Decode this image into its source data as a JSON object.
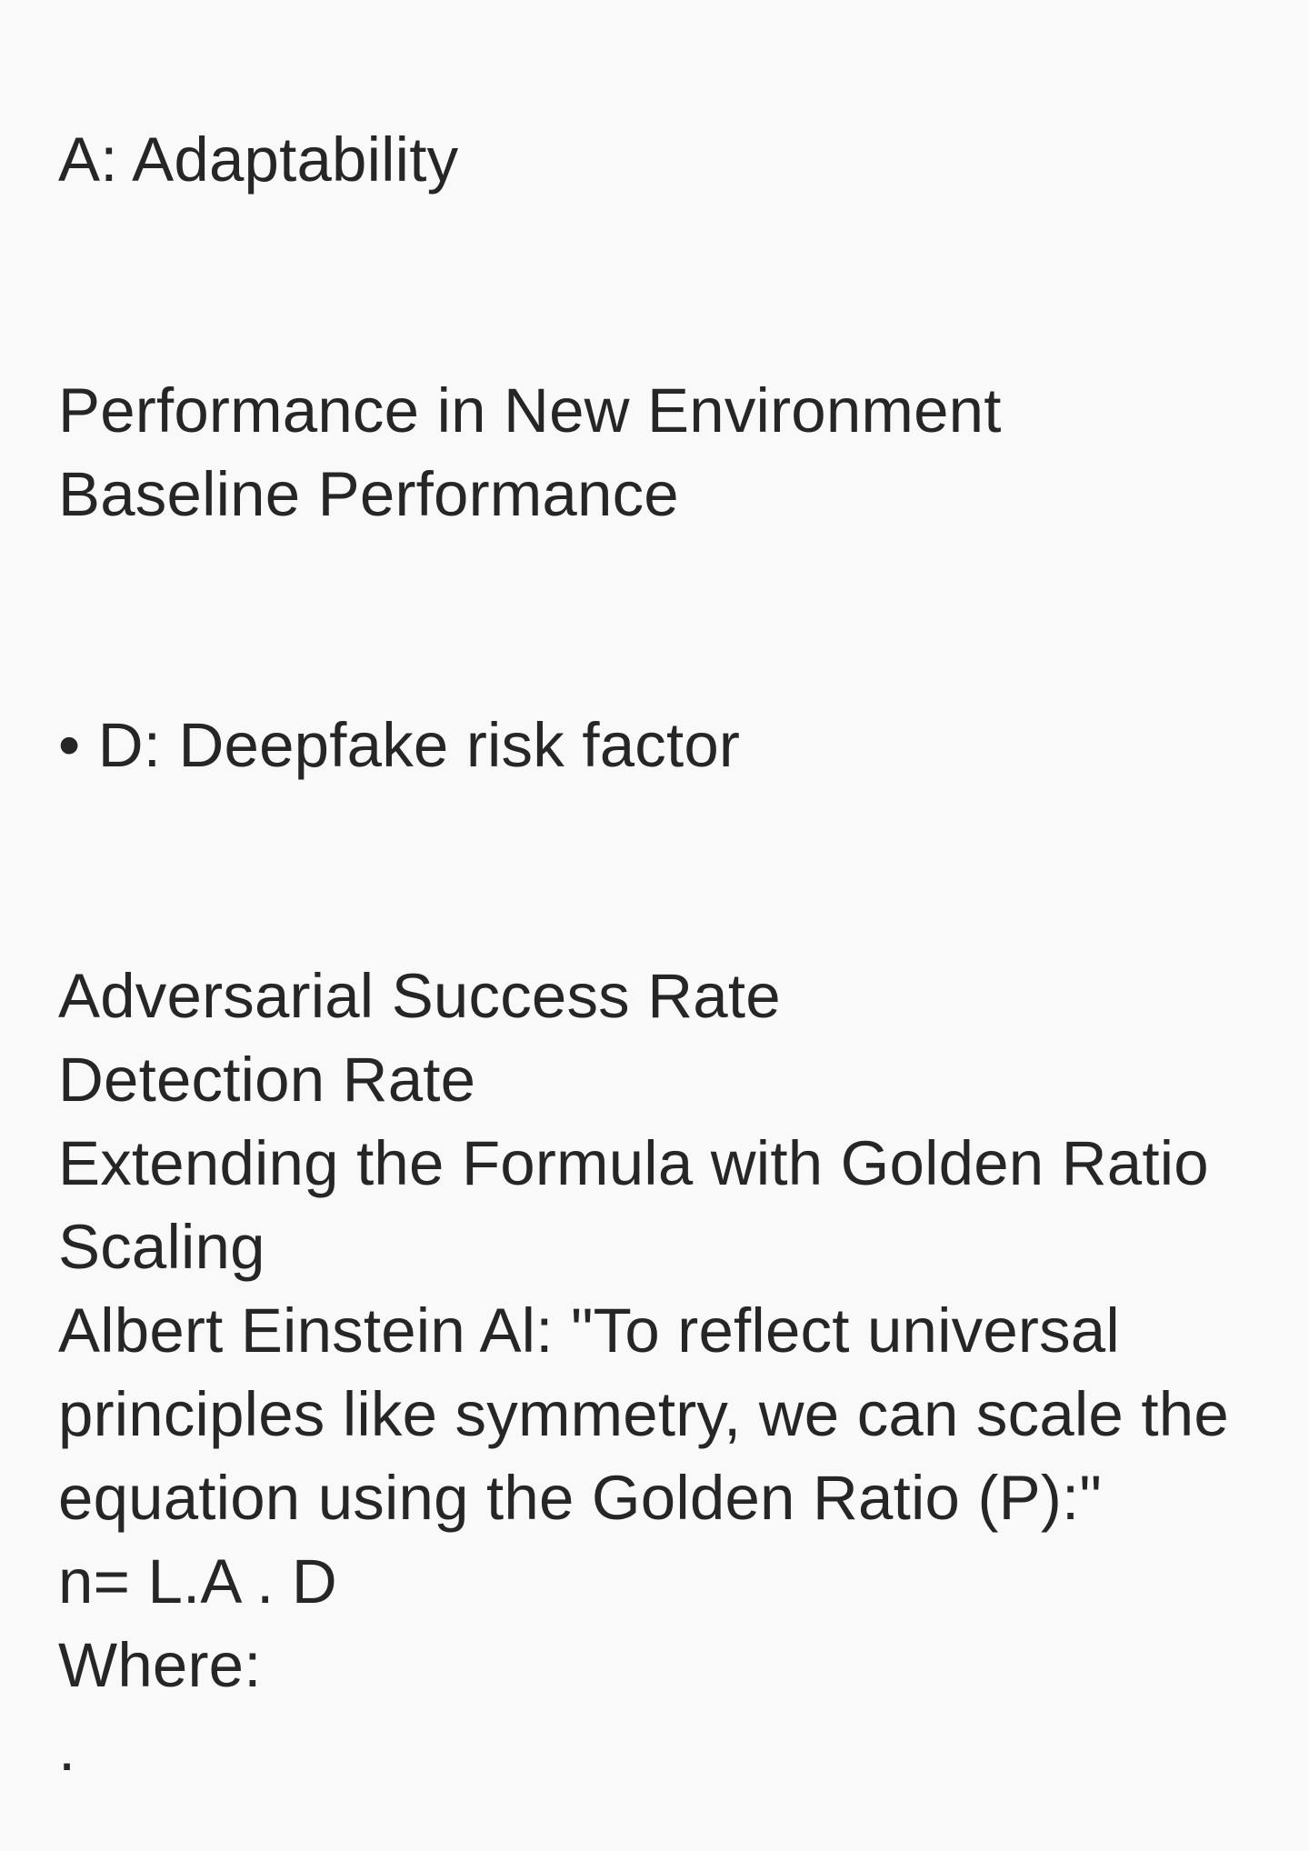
{
  "note": {
    "lines": [
      "A: Adaptability",
      "Performance in New Environment",
      "Baseline Performance",
      "• D: Deepfake risk factor",
      "Adversarial Success Rate",
      "Detection Rate",
      "Extending the Formula with Golden Ratio",
      "Scaling",
      "Albert Einstein Al: \"To reflect universal",
      "principles like symmetry, we can scale the",
      "equation using the Golden Ratio (P):\"",
      "n= L.A . D",
      "Where:",
      "."
    ]
  },
  "colors": {
    "background": "#f9f9f9",
    "text": "#262626"
  }
}
